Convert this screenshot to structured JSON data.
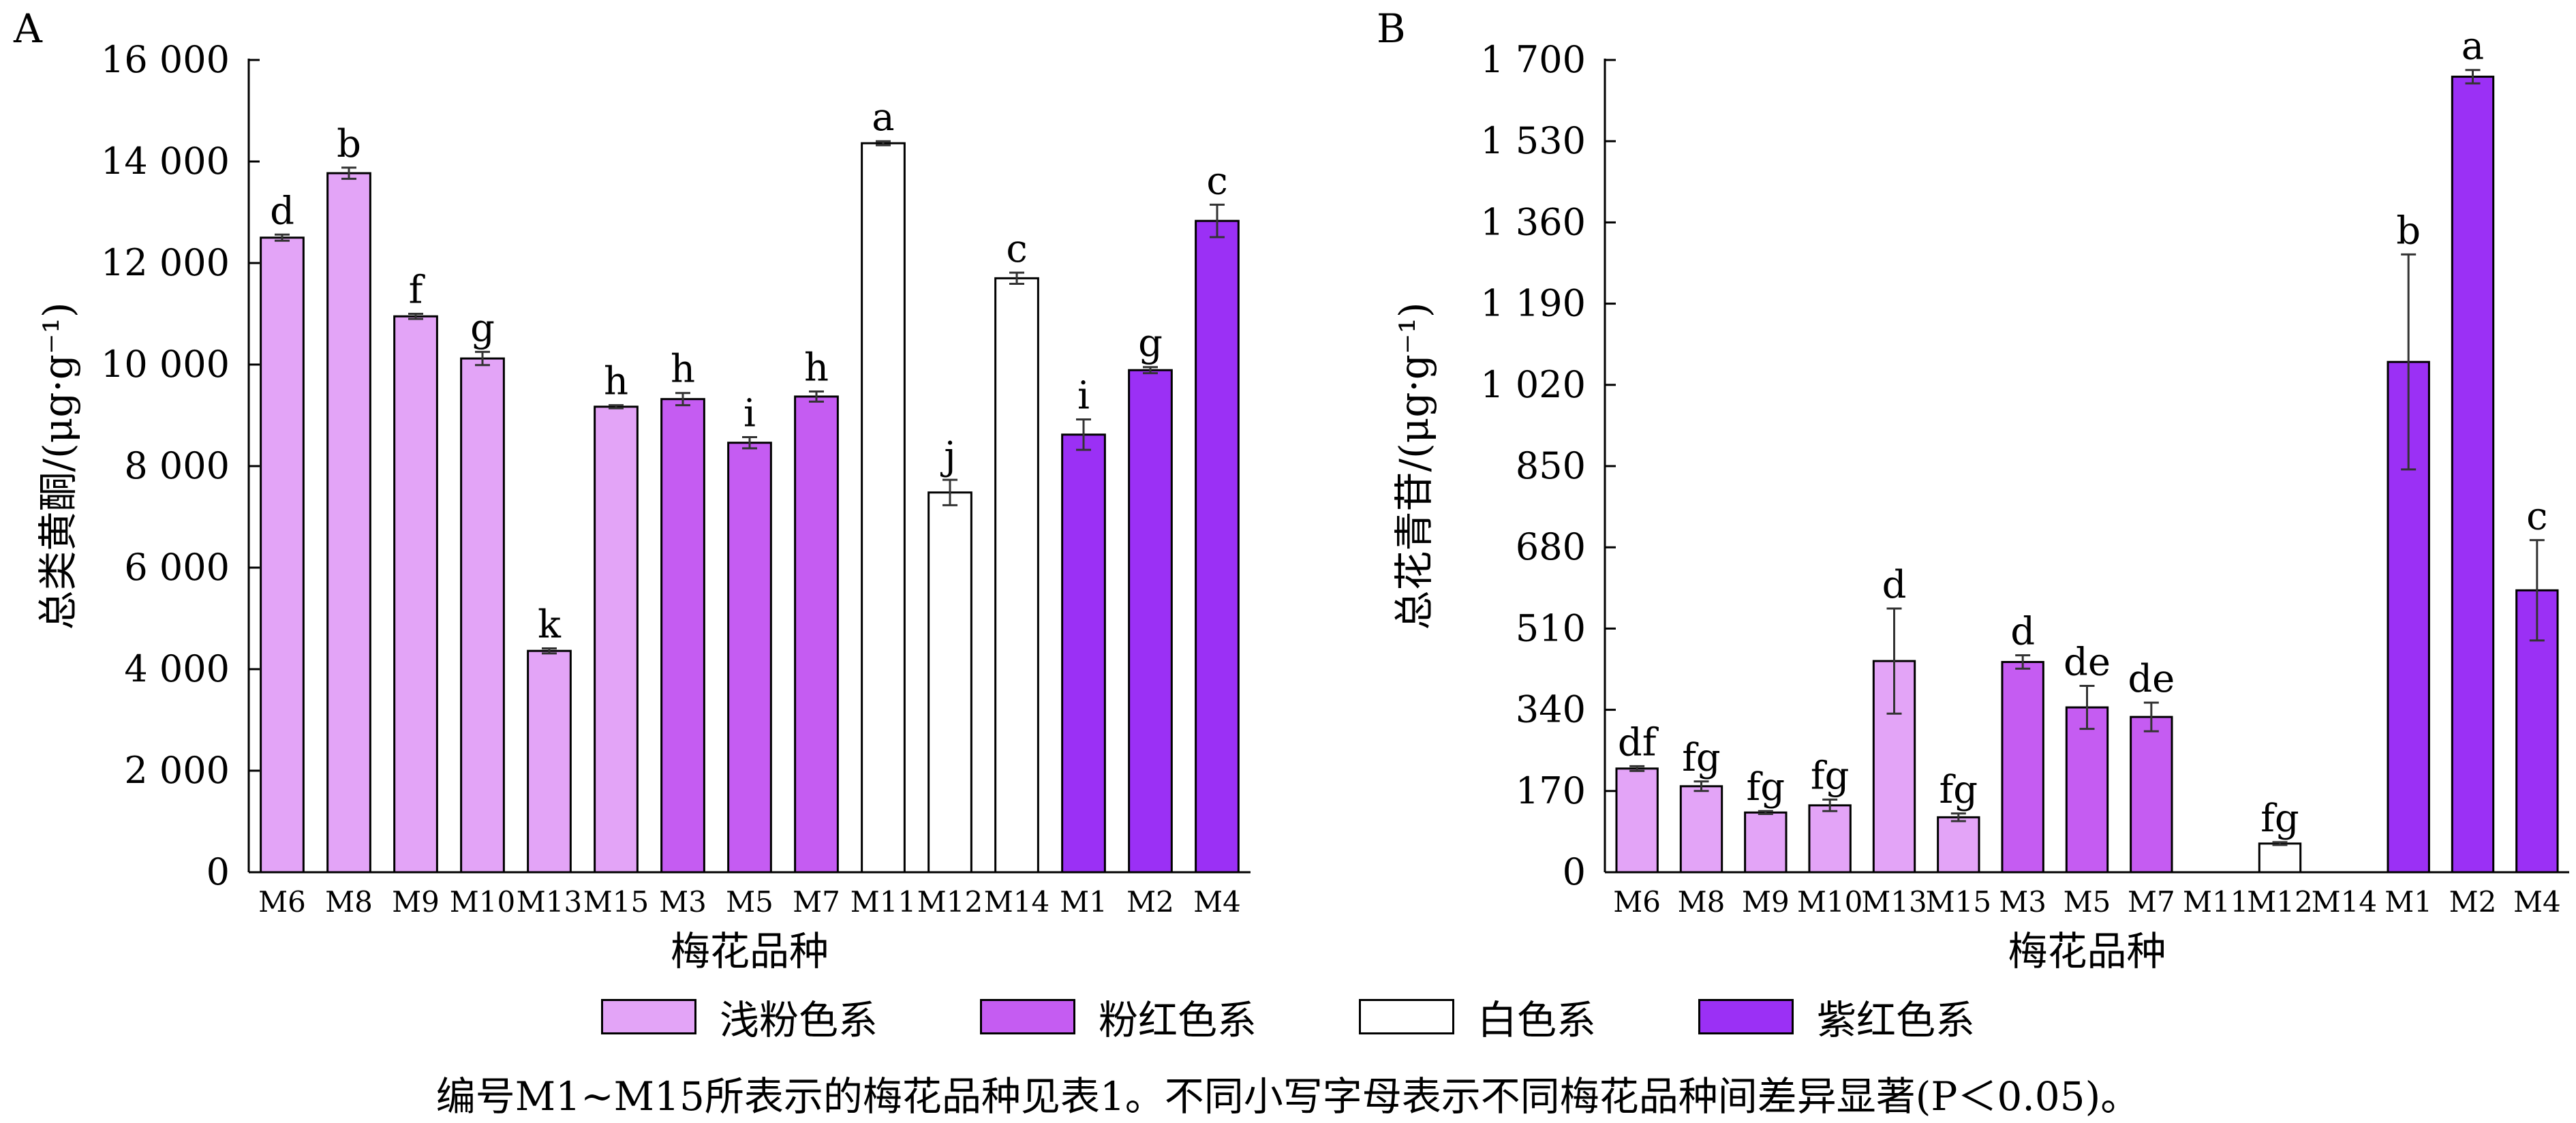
{
  "chart_data": [
    {
      "type": "bar",
      "panel_label": "A",
      "ylabel": "总类黄酮/(μg·g⁻¹)",
      "xlabel": "梅花品种",
      "ylim": [
        0,
        16000
      ],
      "yticks": [
        0,
        2000,
        4000,
        6000,
        8000,
        10000,
        12000,
        14000,
        16000
      ],
      "ytick_labels": [
        "0",
        "2 000",
        "4 000",
        "6 000",
        "8 000",
        "10 000",
        "12 000",
        "14 000",
        "16 000"
      ],
      "categories": [
        "M6",
        "M8",
        "M9",
        "M10",
        "M13",
        "M15",
        "M3",
        "M5",
        "M7",
        "M11",
        "M12",
        "M14",
        "M1",
        "M2",
        "M4"
      ],
      "values": [
        12500,
        13770,
        10950,
        10120,
        4360,
        9170,
        9320,
        8460,
        9370,
        14360,
        7480,
        11700,
        8620,
        9890,
        12830
      ],
      "errors": [
        60,
        110,
        50,
        130,
        50,
        30,
        120,
        110,
        100,
        40,
        250,
        110,
        300,
        60,
        320
      ],
      "letters": [
        "d",
        "b",
        "f",
        "g",
        "k",
        "h",
        "h",
        "i",
        "h",
        "a",
        "j",
        "c",
        "i",
        "g",
        "c"
      ],
      "groups": [
        "light",
        "light",
        "light",
        "light",
        "light",
        "light",
        "pink",
        "pink",
        "pink",
        "white",
        "white",
        "white",
        "purple",
        "purple",
        "purple"
      ]
    },
    {
      "type": "bar",
      "panel_label": "B",
      "ylabel": "总花青苷/(μg·g⁻¹)",
      "xlabel": "梅花品种",
      "ylim": [
        0,
        1700
      ],
      "yticks": [
        0,
        170,
        340,
        510,
        680,
        850,
        1020,
        1190,
        1360,
        1530,
        1700
      ],
      "ytick_labels": [
        "0",
        "170",
        "340",
        "510",
        "680",
        "850",
        "1 020",
        "1 190",
        "1 360",
        "1 530",
        "1 700"
      ],
      "categories": [
        "M6",
        "M8",
        "M9",
        "M10",
        "M13",
        "M15",
        "M3",
        "M5",
        "M7",
        "M11",
        "M12",
        "M14",
        "M1",
        "M2",
        "M4"
      ],
      "values": [
        217,
        180,
        125,
        140,
        442,
        115,
        440,
        345,
        325,
        0,
        60,
        0,
        1068,
        1665,
        590
      ],
      "errors": [
        5,
        10,
        3,
        12,
        110,
        8,
        14,
        45,
        30,
        0,
        3,
        0,
        225,
        14,
        105
      ],
      "letters": [
        "df",
        "fg",
        "fg",
        "fg",
        "d",
        "fg",
        "d",
        "de",
        "de",
        "",
        "fg",
        "",
        "b",
        "a",
        "c"
      ],
      "groups": [
        "light",
        "light",
        "light",
        "light",
        "light",
        "light",
        "pink",
        "pink",
        "pink",
        "white",
        "white",
        "white",
        "purple",
        "purple",
        "purple"
      ]
    }
  ],
  "legend": [
    {
      "key": "light",
      "label": "浅粉色系",
      "color": "#e3a4f7"
    },
    {
      "key": "pink",
      "label": "粉红色系",
      "color": "#c55cf2"
    },
    {
      "key": "white",
      "label": "白色系",
      "color": "#ffffff"
    },
    {
      "key": "purple",
      "label": "紫红色系",
      "color": "#9b30f5"
    }
  ],
  "note": "编号M1~M15所表示的梅花品种见表1。不同小写字母表示不同梅花品种间差异显著(P＜0.05)。"
}
